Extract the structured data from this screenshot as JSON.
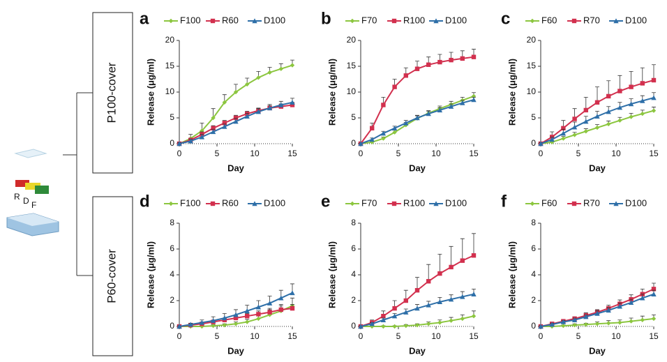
{
  "row_labels": [
    "P100-cover",
    "P60-cover"
  ],
  "layer_labels": [
    "R",
    "D",
    "F"
  ],
  "chart_data": [
    {
      "type": "line",
      "panel": "a",
      "x_label": "Day",
      "y_label": "Release (μg/ml)",
      "x": [
        0,
        1.5,
        3,
        4.5,
        6,
        7.5,
        9,
        10.5,
        12,
        13.5,
        15
      ],
      "xlim": [
        0,
        15
      ],
      "xticks": [
        0,
        5,
        10,
        15
      ],
      "ylim": [
        0,
        20
      ],
      "yticks": [
        0,
        5,
        10,
        15,
        20
      ],
      "series": [
        {
          "name": "F100",
          "color": "#8cc63f",
          "marker": "diamond",
          "values": [
            0,
            1,
            2.5,
            5,
            8,
            10,
            11.5,
            12.8,
            13.8,
            14.5,
            15.2
          ],
          "errors": [
            0.3,
            0.8,
            1.5,
            1.8,
            1.5,
            1.5,
            1.2,
            1.2,
            1,
            1,
            1
          ]
        },
        {
          "name": "R60",
          "color": "#d2304e",
          "marker": "square",
          "values": [
            0,
            0.7,
            1.8,
            3,
            4,
            5,
            5.8,
            6.4,
            6.9,
            7.2,
            7.5
          ],
          "errors": [
            0.2,
            0.4,
            0.5,
            0.5,
            0.5,
            0.5,
            0.5,
            0.5,
            0.5,
            0.5,
            0.5
          ]
        },
        {
          "name": "D100",
          "color": "#2e6fa8",
          "marker": "triangle",
          "values": [
            0,
            0.5,
            1.3,
            2.3,
            3.3,
            4.3,
            5.3,
            6.2,
            6.9,
            7.5,
            8
          ],
          "errors": [
            0.2,
            0.4,
            0.5,
            0.5,
            0.5,
            0.6,
            0.6,
            0.6,
            0.7,
            0.7,
            0.8
          ]
        }
      ]
    },
    {
      "type": "line",
      "panel": "b",
      "x_label": "Day",
      "y_label": "Release (μg/ml)",
      "x": [
        0,
        1.5,
        3,
        4.5,
        6,
        7.5,
        9,
        10.5,
        12,
        13.5,
        15
      ],
      "xlim": [
        0,
        15
      ],
      "xticks": [
        0,
        5,
        10,
        15
      ],
      "ylim": [
        0,
        20
      ],
      "yticks": [
        0,
        5,
        10,
        15,
        20
      ],
      "series": [
        {
          "name": "F70",
          "color": "#8cc63f",
          "marker": "diamond",
          "values": [
            0,
            0.3,
            1,
            2.2,
            3.6,
            4.9,
            5.9,
            6.8,
            7.6,
            8.4,
            9.2
          ],
          "errors": [
            0.1,
            0.2,
            0.3,
            0.4,
            0.5,
            0.5,
            0.5,
            0.5,
            0.6,
            0.6,
            0.7
          ]
        },
        {
          "name": "R100",
          "color": "#d2304e",
          "marker": "square",
          "values": [
            0,
            3,
            7.5,
            11,
            13.2,
            14.5,
            15.3,
            15.8,
            16.2,
            16.5,
            16.8
          ],
          "errors": [
            0.2,
            1,
            1.5,
            1.5,
            1.5,
            1.5,
            1.5,
            1.5,
            1.5,
            1.5,
            1.5
          ]
        },
        {
          "name": "D100",
          "color": "#2e6fa8",
          "marker": "triangle",
          "values": [
            0,
            0.8,
            2,
            3,
            4,
            5,
            5.8,
            6.5,
            7.2,
            7.9,
            8.5
          ],
          "errors": [
            0.1,
            0.3,
            0.4,
            0.4,
            0.5,
            0.5,
            0.5,
            0.5,
            0.5,
            0.5,
            0.5
          ]
        }
      ]
    },
    {
      "type": "line",
      "panel": "c",
      "x_label": "Day",
      "y_label": "Release (μg/ml)",
      "x": [
        0,
        1.5,
        3,
        4.5,
        6,
        7.5,
        9,
        10.5,
        12,
        13.5,
        15
      ],
      "xlim": [
        0,
        15
      ],
      "xticks": [
        0,
        5,
        10,
        15
      ],
      "ylim": [
        0,
        20
      ],
      "yticks": [
        0,
        5,
        10,
        15,
        20
      ],
      "series": [
        {
          "name": "F60",
          "color": "#8cc63f",
          "marker": "diamond",
          "values": [
            0,
            0.3,
            1,
            1.7,
            2.4,
            3.1,
            3.8,
            4.5,
            5.2,
            5.8,
            6.4
          ],
          "errors": [
            0.1,
            0.3,
            0.4,
            0.5,
            0.5,
            0.6,
            0.6,
            0.6,
            0.7,
            0.7,
            0.7
          ]
        },
        {
          "name": "R70",
          "color": "#d2304e",
          "marker": "square",
          "values": [
            0,
            1.3,
            3,
            4.8,
            6.5,
            8,
            9.2,
            10.2,
            11,
            11.7,
            12.3
          ],
          "errors": [
            0.3,
            1,
            1.5,
            2,
            2.5,
            3,
            3,
            3,
            3,
            3,
            3
          ]
        },
        {
          "name": "D100",
          "color": "#2e6fa8",
          "marker": "triangle",
          "values": [
            0,
            0.8,
            2,
            3.2,
            4.3,
            5.3,
            6.2,
            7,
            7.7,
            8.3,
            8.9
          ],
          "errors": [
            0.2,
            0.5,
            0.8,
            1,
            1,
            1,
            1,
            1,
            1,
            1,
            1
          ]
        }
      ]
    },
    {
      "type": "line",
      "panel": "d",
      "x_label": "Day",
      "y_label": "Release (μg/ml)",
      "x": [
        0,
        1.5,
        3,
        4.5,
        6,
        7.5,
        9,
        10.5,
        12,
        13.5,
        15
      ],
      "xlim": [
        0,
        15
      ],
      "xticks": [
        0,
        5,
        10,
        15
      ],
      "ylim": [
        0,
        8
      ],
      "yticks": [
        0,
        2,
        4,
        6,
        8
      ],
      "series": [
        {
          "name": "F100",
          "color": "#8cc63f",
          "marker": "diamond",
          "values": [
            0,
            0,
            0,
            0.05,
            0.1,
            0.2,
            0.35,
            0.6,
            0.9,
            1.2,
            1.6
          ],
          "errors": [
            0,
            0,
            0.05,
            0.1,
            0.1,
            0.15,
            0.2,
            0.3,
            0.4,
            0.5,
            0.6
          ]
        },
        {
          "name": "R60",
          "color": "#d2304e",
          "marker": "square",
          "values": [
            0,
            0.1,
            0.2,
            0.35,
            0.5,
            0.65,
            0.8,
            0.95,
            1.1,
            1.3,
            1.4
          ],
          "errors": [
            0,
            0.05,
            0.1,
            0.1,
            0.15,
            0.2,
            0.2,
            0.25,
            0.3,
            0.3,
            0.3
          ]
        },
        {
          "name": "D100",
          "color": "#2e6fa8",
          "marker": "triangle",
          "values": [
            0,
            0.15,
            0.3,
            0.45,
            0.65,
            0.9,
            1.2,
            1.5,
            1.8,
            2.2,
            2.6
          ],
          "errors": [
            0.05,
            0.1,
            0.2,
            0.3,
            0.35,
            0.4,
            0.45,
            0.5,
            0.55,
            0.6,
            0.7
          ]
        }
      ]
    },
    {
      "type": "line",
      "panel": "e",
      "x_label": "Day",
      "y_label": "Release (μg/ml)",
      "x": [
        0,
        1.5,
        3,
        4.5,
        6,
        7.5,
        9,
        10.5,
        12,
        13.5,
        15
      ],
      "xlim": [
        0,
        15
      ],
      "xticks": [
        0,
        5,
        10,
        15
      ],
      "ylim": [
        0,
        8
      ],
      "yticks": [
        0,
        2,
        4,
        6,
        8
      ],
      "series": [
        {
          "name": "F70",
          "color": "#8cc63f",
          "marker": "diamond",
          "values": [
            0,
            0,
            0,
            0,
            0.05,
            0.1,
            0.2,
            0.3,
            0.45,
            0.6,
            0.8
          ],
          "errors": [
            0,
            0,
            0.05,
            0.05,
            0.1,
            0.1,
            0.15,
            0.2,
            0.25,
            0.3,
            0.4
          ]
        },
        {
          "name": "R100",
          "color": "#d2304e",
          "marker": "square",
          "values": [
            0,
            0.3,
            0.8,
            1.4,
            2,
            2.8,
            3.5,
            4.1,
            4.6,
            5.1,
            5.5
          ],
          "errors": [
            0.05,
            0.2,
            0.4,
            0.6,
            0.8,
            1,
            1.3,
            1.5,
            1.6,
            1.7,
            1.7
          ]
        },
        {
          "name": "D100",
          "color": "#2e6fa8",
          "marker": "triangle",
          "values": [
            0,
            0.2,
            0.5,
            0.8,
            1.1,
            1.4,
            1.65,
            1.9,
            2.1,
            2.3,
            2.5
          ],
          "errors": [
            0.05,
            0.1,
            0.15,
            0.2,
            0.25,
            0.3,
            0.3,
            0.35,
            0.35,
            0.4,
            0.4
          ]
        }
      ]
    },
    {
      "type": "line",
      "panel": "f",
      "x_label": "Day",
      "y_label": "Release (μg/ml)",
      "x": [
        0,
        1.5,
        3,
        4.5,
        6,
        7.5,
        9,
        10.5,
        12,
        13.5,
        15
      ],
      "xlim": [
        0,
        15
      ],
      "xticks": [
        0,
        5,
        10,
        15
      ],
      "ylim": [
        0,
        8
      ],
      "yticks": [
        0,
        2,
        4,
        6,
        8
      ],
      "series": [
        {
          "name": "F60",
          "color": "#8cc63f",
          "marker": "diamond",
          "values": [
            0,
            0,
            0.05,
            0.1,
            0.15,
            0.2,
            0.25,
            0.3,
            0.4,
            0.5,
            0.6
          ],
          "errors": [
            0,
            0.05,
            0.05,
            0.1,
            0.1,
            0.15,
            0.2,
            0.2,
            0.25,
            0.3,
            0.3
          ]
        },
        {
          "name": "R70",
          "color": "#d2304e",
          "marker": "square",
          "values": [
            0,
            0.2,
            0.4,
            0.6,
            0.85,
            1.1,
            1.4,
            1.75,
            2.1,
            2.5,
            2.9
          ],
          "errors": [
            0.05,
            0.1,
            0.1,
            0.15,
            0.2,
            0.2,
            0.25,
            0.3,
            0.35,
            0.4,
            0.45
          ]
        },
        {
          "name": "D100",
          "color": "#2e6fa8",
          "marker": "triangle",
          "values": [
            0,
            0.15,
            0.35,
            0.5,
            0.75,
            1,
            1.25,
            1.55,
            1.85,
            2.2,
            2.5
          ],
          "errors": [
            0.05,
            0.1,
            0.1,
            0.15,
            0.15,
            0.2,
            0.2,
            0.25,
            0.25,
            0.3,
            0.3
          ]
        }
      ]
    }
  ]
}
